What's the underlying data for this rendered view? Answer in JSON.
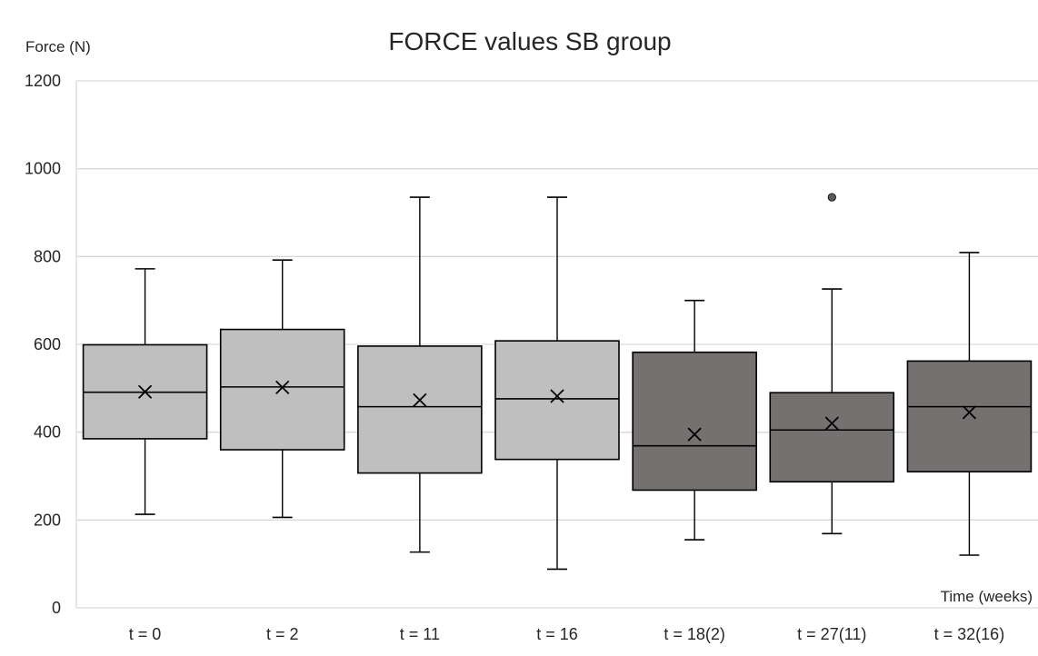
{
  "chart_data": {
    "type": "box",
    "title": "FORCE values SB group",
    "ylabel": "Force (N)",
    "xlabel": "Time (weeks)",
    "ylim": [
      0,
      1200
    ],
    "yticks": [
      0,
      200,
      400,
      600,
      800,
      1000,
      1200
    ],
    "grid": true,
    "categories": [
      "t = 0",
      "t = 2",
      "t = 11",
      "t = 16",
      "t = 18(2)",
      "t = 27(11)",
      "t = 32(16)"
    ],
    "boxes": [
      {
        "min": 213,
        "q1": 385,
        "median": 491,
        "q3": 599,
        "max": 772,
        "mean": 492,
        "outliers": [],
        "color": "#bfbfbf"
      },
      {
        "min": 206,
        "q1": 360,
        "median": 503,
        "q3": 634,
        "max": 792,
        "mean": 502,
        "outliers": [],
        "color": "#bfbfbf"
      },
      {
        "min": 127,
        "q1": 307,
        "median": 458,
        "q3": 596,
        "max": 935,
        "mean": 473,
        "outliers": [],
        "color": "#bfbfbf"
      },
      {
        "min": 88,
        "q1": 338,
        "median": 476,
        "q3": 608,
        "max": 935,
        "mean": 482,
        "outliers": [],
        "color": "#bfbfbf"
      },
      {
        "min": 155,
        "q1": 268,
        "median": 369,
        "q3": 582,
        "max": 700,
        "mean": 395,
        "outliers": [],
        "color": "#767171"
      },
      {
        "min": 169,
        "q1": 287,
        "median": 405,
        "q3": 490,
        "max": 726,
        "mean": 420,
        "outliers": [
          935
        ],
        "color": "#767171"
      },
      {
        "min": 120,
        "q1": 310,
        "median": 458,
        "q3": 562,
        "max": 809,
        "mean": 445,
        "outliers": [],
        "color": "#767171"
      }
    ]
  }
}
